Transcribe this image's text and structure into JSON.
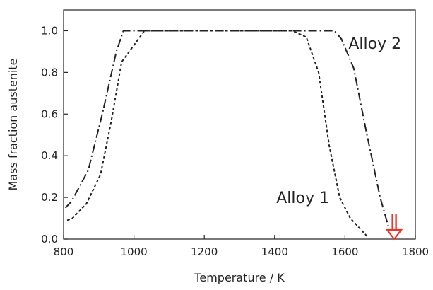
{
  "chart_data": {
    "type": "line",
    "xlabel": "Temperature / K",
    "ylabel": "Mass fraction austenite",
    "xlim": [
      800,
      1800
    ],
    "ylim": [
      0,
      1.1
    ],
    "xticks": [
      800,
      1000,
      1200,
      1400,
      1600,
      1800
    ],
    "xtick_labels": [
      "800",
      "1000",
      "1200",
      "1400",
      "1600",
      "1800"
    ],
    "yticks": [
      0,
      0.2,
      0.4,
      0.6,
      0.8,
      1.0
    ],
    "ytick_labels": [
      "0.0",
      "0.2",
      "0.4",
      "0.6",
      "0.8",
      "1.0"
    ],
    "grid": false,
    "series": [
      {
        "name": "Alloy 1",
        "line_style": "short-dash",
        "color": "#222222",
        "points": [
          [
            810,
            0.09
          ],
          [
            825,
            0.1
          ],
          [
            865,
            0.17
          ],
          [
            905,
            0.31
          ],
          [
            935,
            0.56
          ],
          [
            965,
            0.85
          ],
          [
            1030,
            1.0
          ],
          [
            1450,
            1.0
          ],
          [
            1490,
            0.97
          ],
          [
            1525,
            0.8
          ],
          [
            1555,
            0.45
          ],
          [
            1585,
            0.2
          ],
          [
            1615,
            0.1
          ],
          [
            1665,
            0.01
          ]
        ]
      },
      {
        "name": "Alloy 2",
        "line_style": "dash-dot",
        "color": "#222222",
        "points": [
          [
            805,
            0.15
          ],
          [
            822,
            0.18
          ],
          [
            870,
            0.33
          ],
          [
            910,
            0.6
          ],
          [
            950,
            0.9
          ],
          [
            970,
            1.0
          ],
          [
            1570,
            1.0
          ],
          [
            1590,
            0.96
          ],
          [
            1625,
            0.82
          ],
          [
            1660,
            0.52
          ],
          [
            1700,
            0.2
          ],
          [
            1725,
            0.05
          ]
        ]
      }
    ],
    "annotations": [
      {
        "text": "Alloy 1",
        "x": 1480,
        "y": 0.2
      },
      {
        "text": "Alloy 2",
        "x": 1685,
        "y": 0.94
      }
    ],
    "markers": {
      "color": "#e8372b",
      "arrows_at_x": [
        1735,
        1745
      ],
      "arrow_from_y": 0.12,
      "arrow_to_y": 0.0
    }
  }
}
